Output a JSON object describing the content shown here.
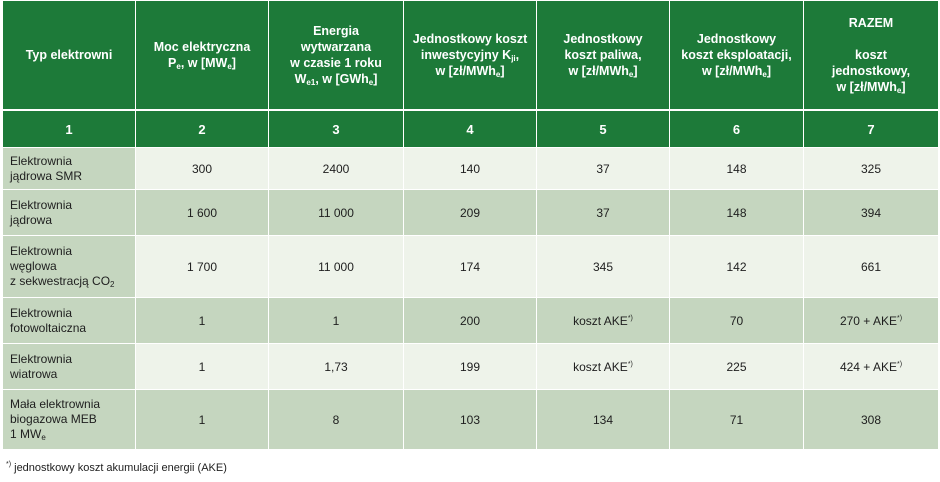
{
  "table": {
    "header": {
      "col1": "Typ elektrowni",
      "col2": {
        "l1": "Moc elektryczna",
        "l2_pre": "P",
        "l2_sub": "e",
        "l2_post": ", w [MW",
        "l2_unit_sub": "e",
        "l2_end": "]"
      },
      "col3": {
        "l1": "Energia",
        "l2": "wytwarzana",
        "l3": "w czasie 1 roku",
        "l4_pre": "W",
        "l4_sub": "e1",
        "l4_post": ", w [GWh",
        "l4_unit_sub": "e",
        "l4_end": "]"
      },
      "col4": {
        "l1": "Jednostkowy koszt",
        "l2_pre": "inwestycyjny K",
        "l2_sub": "ji",
        "l2_post": ",",
        "l3_pre": "w [zł/MWh",
        "l3_sub": "e",
        "l3_end": "]"
      },
      "col5": {
        "l1": "Jednostkowy",
        "l2": "koszt paliwa,",
        "l3_pre": "w [zł/MWh",
        "l3_sub": "e",
        "l3_end": "]"
      },
      "col6": {
        "l1": "Jednostkowy",
        "l2": "koszt eksploatacji,",
        "l3_pre": "w [zł/MWh",
        "l3_sub": "e",
        "l3_end": "]"
      },
      "col7": {
        "l1": "RAZEM",
        "l2": "koszt",
        "l3": "jednostkowy,",
        "l4_pre": "w [zł/MWh",
        "l4_sub": "e",
        "l4_end": "]"
      }
    },
    "numbers": [
      "1",
      "2",
      "3",
      "4",
      "5",
      "6",
      "7"
    ],
    "rows": [
      {
        "name": {
          "l1": "Elektrownia",
          "l2": "jądrowa SMR"
        },
        "power": "300",
        "energy": "2400",
        "invest": "140",
        "fuel": "37",
        "operation": "148",
        "total": "325"
      },
      {
        "name": {
          "l1": "Elektrownia",
          "l2": "jądrowa"
        },
        "power": "1 600",
        "energy": "11 000",
        "invest": "209",
        "fuel": "37",
        "operation": "148",
        "total": "394"
      },
      {
        "name": {
          "l1": "Elektrownia",
          "l2": "węglowa",
          "l3_pre": "z sekwestracją CO",
          "l3_sub": "2"
        },
        "power": "1 700",
        "energy": "11 000",
        "invest": "174",
        "fuel": "345",
        "operation": "142",
        "total": "661"
      },
      {
        "name": {
          "l1": "Elektrownia",
          "l2": "fotowoltaiczna"
        },
        "power": "1",
        "energy": "1",
        "invest": "200",
        "fuel_pre": "koszt AKE",
        "fuel_sup": "*)",
        "operation": "70",
        "total_pre": "270 + AKE",
        "total_sup": "*)"
      },
      {
        "name": {
          "l1": "Elektrownia",
          "l2": "wiatrowa"
        },
        "power": "1",
        "energy": "1,73",
        "invest": "199",
        "fuel_pre": "koszt AKE",
        "fuel_sup": "*)",
        "operation": "225",
        "total_pre": "424 + AKE",
        "total_sup": "*)"
      },
      {
        "name": {
          "l1": "Mała elektrownia",
          "l2": "biogazowa MEB",
          "l3_pre": "1 MW",
          "l3_sub": "e"
        },
        "power": "1",
        "energy": "8",
        "invest": "103",
        "fuel": "134",
        "operation": "71",
        "total": "308"
      }
    ]
  },
  "footnote": {
    "sup": "*)",
    "text": " jednostkowy koszt akumulacji energii (AKE)"
  }
}
